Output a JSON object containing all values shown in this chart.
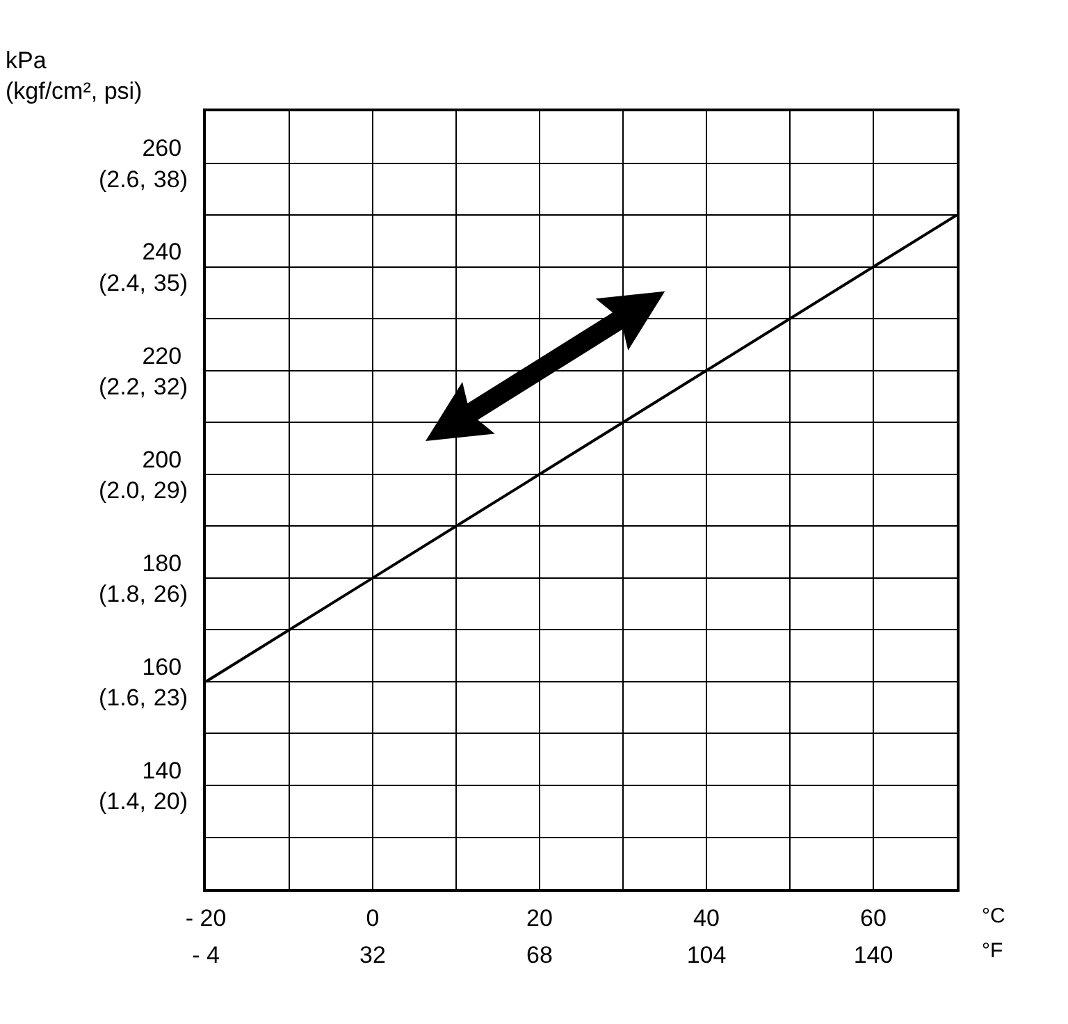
{
  "chart_data": {
    "type": "line",
    "annotations": [
      "kPa\n(kgf/cm², psi)"
    ],
    "xlabel": "°C",
    "x2label": "°F",
    "x": [
      -20,
      70
    ],
    "series": [
      {
        "color": "#000000",
        "values": [
          160,
          250
        ]
      }
    ],
    "xlim": [
      -20,
      70
    ],
    "xticks": [
      {
        "value": -20,
        "label": "- 20"
      },
      {
        "value": -10,
        "label": null
      },
      0,
      {
        "value": 10,
        "label": null
      },
      20,
      {
        "value": 30,
        "label": null
      },
      40,
      {
        "value": 50,
        "label": null
      },
      60,
      {
        "value": 70,
        "label": null
      }
    ],
    "x2lim": [
      -4,
      158
    ],
    "x2ticks": [
      {
        "value": -4,
        "label": "- 4"
      },
      32,
      68,
      104,
      140
    ],
    "ylim": [
      120,
      270
    ],
    "yticks": [
      {
        "value": 120,
        "label": null
      },
      {
        "value": 130,
        "label": null
      },
      140,
      {
        "value": 150,
        "label": null
      },
      160,
      {
        "value": 170,
        "label": null
      },
      180,
      {
        "value": 190,
        "label": null
      },
      200,
      {
        "value": 210,
        "label": null
      },
      220,
      {
        "value": 230,
        "label": null
      },
      240,
      {
        "value": 250,
        "label": null
      },
      260,
      {
        "value": 270,
        "label": null
      }
    ],
    "y2lim": [
      1.2,
      2.7
    ],
    "y2ticks": [
      {
        "value": 1.4,
        "label": "(1.4,"
      },
      {
        "value": 1.6,
        "label": "(1.6,"
      },
      {
        "value": 1.8,
        "label": "(1.8,"
      },
      {
        "value": 2.0,
        "label": "(2.0,"
      },
      {
        "value": 2.2,
        "label": "(2.2,"
      },
      {
        "value": 2.4,
        "label": "(2.4,"
      },
      {
        "value": 2.6,
        "label": "(2.6,"
      }
    ],
    "y3lim": [
      17,
      39.5
    ],
    "y3ticks": [
      {
        "value": 20,
        "label": "20)"
      },
      {
        "value": 23,
        "label": "23)"
      },
      {
        "value": 26,
        "label": "26)"
      },
      {
        "value": 29,
        "label": "29)"
      },
      {
        "value": 32,
        "label": "32)"
      },
      {
        "value": 35,
        "label": "35)"
      },
      {
        "value": 38,
        "label": "38)"
      }
    ],
    "grid": true,
    "marker": "none",
    "line_style": "solid"
  }
}
